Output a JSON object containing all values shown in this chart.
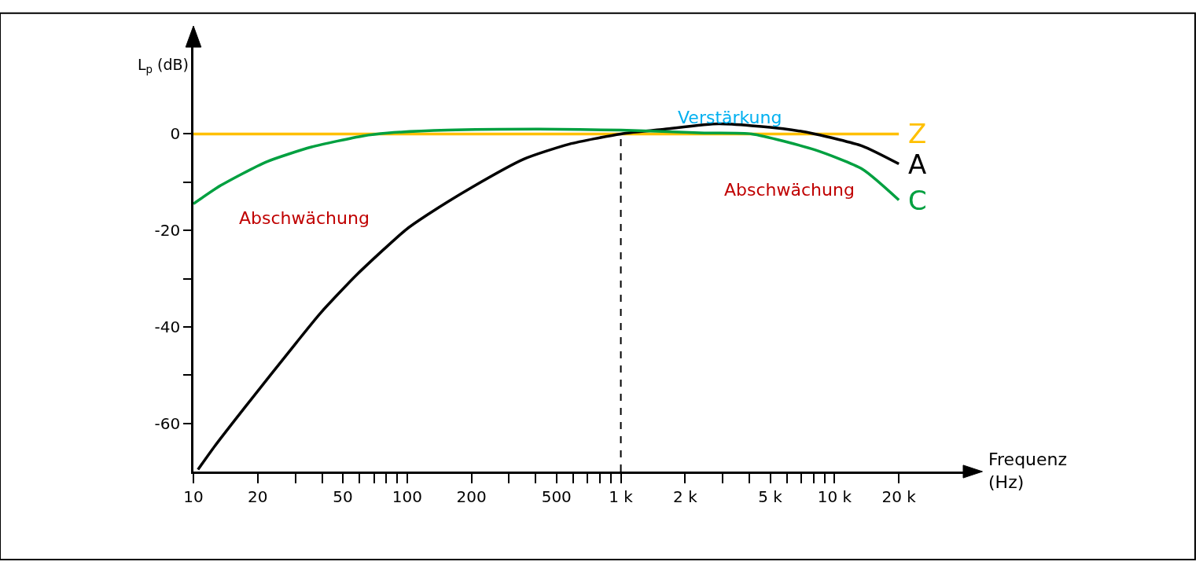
{
  "chart_data": {
    "type": "line",
    "ylabel": "L$_{p}$ (dB)",
    "xlabel": "Frequenz\n(Hz)",
    "log": "x",
    "xlim": [
      10,
      40000
    ],
    "ylim": [
      -70,
      18
    ],
    "xticks": [
      10,
      20,
      {
        "value": 30,
        "label": null
      },
      {
        "value": 40,
        "label": null
      },
      50,
      {
        "value": 60,
        "label": null
      },
      {
        "value": 70,
        "label": null
      },
      {
        "value": 80,
        "label": null
      },
      {
        "value": 90,
        "label": null
      },
      100,
      200,
      {
        "value": 300,
        "label": null
      },
      {
        "value": 400,
        "label": null
      },
      500,
      {
        "value": 600,
        "label": null
      },
      {
        "value": 700,
        "label": null
      },
      {
        "value": 800,
        "label": null
      },
      {
        "value": 900,
        "label": null
      },
      {
        "value": 1000,
        "label": "1 k"
      },
      {
        "value": 2000,
        "label": "2 k"
      },
      {
        "value": 3000,
        "label": null
      },
      {
        "value": 4000,
        "label": null
      },
      {
        "value": 5000,
        "label": "5 k"
      },
      {
        "value": 6000,
        "label": null
      },
      {
        "value": 7000,
        "label": null
      },
      {
        "value": 8000,
        "label": null
      },
      {
        "value": 9000,
        "label": null
      },
      {
        "value": 10000,
        "label": "10 k"
      },
      {
        "value": 20000,
        "label": "20 k"
      }
    ],
    "yticks": [
      {
        "value": -60,
        "label": "-60"
      },
      {
        "value": -50,
        "label": null
      },
      {
        "value": -40,
        "label": "-40"
      },
      {
        "value": -30,
        "label": null
      },
      {
        "value": -20,
        "label": "-20"
      },
      {
        "value": -10,
        "label": null
      },
      0
    ],
    "grid": false,
    "legend": false,
    "marker": "none",
    "line_style": "solid",
    "series": [
      {
        "name": "Z",
        "color": "#ffc000",
        "x": [
          10,
          20000
        ],
        "values": [
          0,
          0
        ]
      },
      {
        "name": "A",
        "color": "#000000",
        "x": [
          10.5,
          12.6,
          17.4,
          30.4,
          39.4,
          58.4,
          98.4,
          124,
          202,
          352,
          574,
          1000,
          1610,
          2870,
          5750,
          8090,
          13500,
          20000
        ],
        "values": [
          -69.6,
          -64.7,
          -56.7,
          -43.2,
          -37.1,
          -29.1,
          -19.9,
          -16.8,
          -11.0,
          -5.2,
          -2.1,
          0,
          1.0,
          2.1,
          1.1,
          0,
          -2.5,
          -6.2
        ]
      },
      {
        "name": "C",
        "color": "#00a040",
        "x": [
          10,
          13.4,
          21.9,
          35.7,
          62.2,
          80.9,
          155,
          414,
          1000,
          2460,
          4100,
          8090,
          13500,
          20000
        ],
        "values": [
          -14.5,
          -10.7,
          -5.8,
          -2.7,
          -0.4,
          0.2,
          0.8,
          1.0,
          0.8,
          0.2,
          0,
          -3.3,
          -7.3,
          -13.7
        ]
      }
    ],
    "ref_lines": [
      {
        "axis": "x",
        "value": 1000,
        "color": "#000000",
        "line_style": "dashed"
      }
    ],
    "annotations": [
      "Verstärkung",
      "Abschwächung",
      "Abschwächung"
    ]
  }
}
